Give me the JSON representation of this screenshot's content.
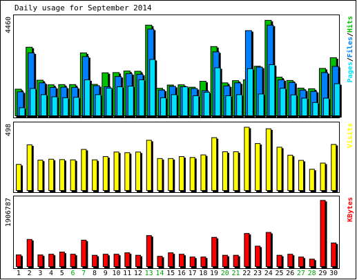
{
  "chart_data": {
    "type": "bar",
    "title": "Daily usage for September 2014",
    "categories": [
      "1",
      "2",
      "3",
      "4",
      "5",
      "6",
      "7",
      "8",
      "9",
      "10",
      "11",
      "12",
      "13",
      "14",
      "15",
      "16",
      "17",
      "18",
      "19",
      "20",
      "21",
      "22",
      "23",
      "24",
      "25",
      "26",
      "27",
      "28",
      "29",
      "30"
    ],
    "weekend_days": [
      "6",
      "7",
      "13",
      "14",
      "20",
      "21",
      "27",
      "28"
    ],
    "colors": {
      "hits": "#00c000",
      "files": "#0080ff",
      "pages": "#00e0ff",
      "visits": "#ffff00",
      "kbytes": "#ff0000",
      "weekend_label": "#00a000",
      "weekday_label": "#000000"
    },
    "panels": [
      {
        "id": "hits-files-pages",
        "ymax_label": "4460",
        "ymax": 4460,
        "legend": [
          {
            "key": "pages",
            "label": "Pages"
          },
          {
            "key": "sep1",
            "label": "/"
          },
          {
            "key": "files",
            "label": "Files"
          },
          {
            "key": "sep2",
            "label": "/"
          },
          {
            "key": "hits",
            "label": "Hits"
          }
        ],
        "series": [
          {
            "name": "Hits",
            "color_key": "hits",
            "values": [
              1250,
              3170,
              1660,
              1450,
              1460,
              1460,
              2910,
              1470,
              2000,
              2010,
              2080,
              2070,
              4180,
              1290,
              1440,
              1450,
              1340,
              1610,
              3200,
              1540,
              1640,
              1680,
              2300,
              4400,
              1800,
              1650,
              1300,
              1270,
              2200,
              2690
            ]
          },
          {
            "name": "Files",
            "color_key": "files",
            "values": [
              1130,
              2910,
              1540,
              1330,
              1340,
              1330,
              2740,
              1410,
              1360,
              1830,
              1960,
              1930,
              4000,
              1210,
              1380,
              1360,
              1280,
              1180,
              2960,
              1400,
              1540,
              3930,
              2260,
              4180,
              1680,
              1560,
              1210,
              1150,
              2010,
              2290
            ]
          },
          {
            "name": "Pages",
            "color_key": "pages",
            "values": [
              400,
              1280,
              1000,
              900,
              860,
              880,
              1680,
              1000,
              1300,
              1360,
              1390,
              1680,
              2610,
              860,
              1000,
              1360,
              950,
              1110,
              2230,
              950,
              1000,
              2190,
              1030,
              2370,
              1290,
              990,
              840,
              640,
              840,
              1500
            ]
          }
        ]
      },
      {
        "id": "visits",
        "ymax_label": "498",
        "ymax": 498,
        "legend": [
          {
            "key": "visits",
            "label": "Visits"
          }
        ],
        "series": [
          {
            "name": "Visits",
            "color_key": "visits",
            "values": [
              205,
              355,
              238,
              245,
              242,
              240,
              320,
              240,
              265,
              300,
              295,
              300,
              390,
              250,
              250,
              265,
              258,
              278,
              410,
              302,
              302,
              490,
              365,
              478,
              337,
              276,
              236,
              168,
              215,
              358
            ]
          }
        ]
      },
      {
        "id": "kbytes",
        "ymax_label": "1906787",
        "ymax": 1906787,
        "legend": [
          {
            "key": "kbytes",
            "label": "KBytes"
          }
        ],
        "series": [
          {
            "name": "KBytes",
            "color_key": "kbytes",
            "values": [
              350000,
              790000,
              350000,
              370000,
              430000,
              370000,
              770000,
              340000,
              370000,
              370000,
              410000,
              340000,
              900000,
              310000,
              410000,
              370000,
              290000,
              290000,
              850000,
              340000,
              340000,
              960000,
              600000,
              990000,
              340000,
              370000,
              290000,
              230000,
              1900000,
              690000
            ]
          }
        ]
      }
    ]
  }
}
